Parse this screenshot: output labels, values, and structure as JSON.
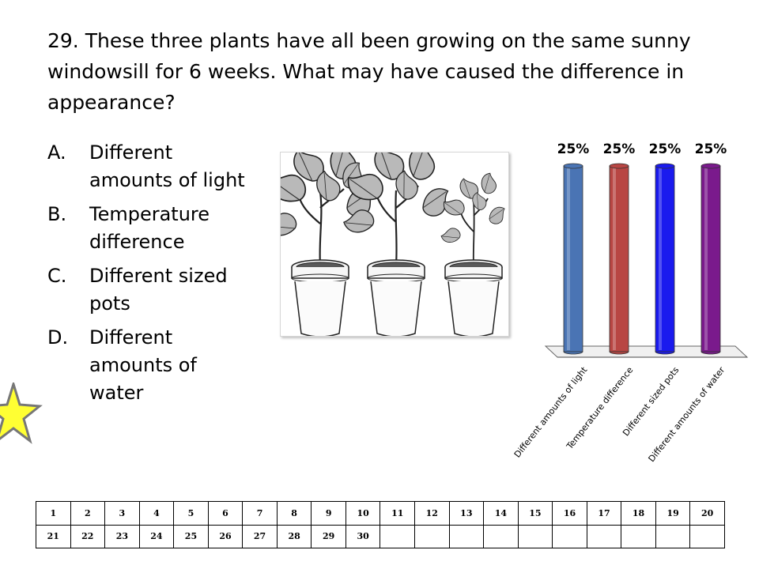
{
  "question": {
    "text": "29.  These three plants have all been growing on the same sunny windowsill for 6 weeks.  What may have caused the difference in appearance?"
  },
  "answers": [
    {
      "letter": "A.",
      "text": "Different amounts of light"
    },
    {
      "letter": "B.",
      "text": "Temperature difference"
    },
    {
      "letter": "C.",
      "text": "Different sized pots"
    },
    {
      "letter": "D.",
      "text": "Different amounts of water"
    }
  ],
  "chart_data": {
    "type": "bar",
    "categories": [
      "Different amounts of light",
      "Temperature difference",
      "Different sized pots",
      "Different amounts of water"
    ],
    "values": [
      25,
      25,
      25,
      25
    ],
    "value_labels": [
      "25%",
      "25%",
      "25%",
      "25%"
    ],
    "colors": [
      "#4a74b4",
      "#b84643",
      "#1a1aee",
      "#7a1a8c"
    ],
    "ylim": [
      0,
      25
    ],
    "title": "",
    "xlabel": "",
    "ylabel": "",
    "grid": false
  },
  "response_grid": {
    "rows": [
      [
        "1",
        "2",
        "3",
        "4",
        "5",
        "6",
        "7",
        "8",
        "9",
        "10",
        "11",
        "12",
        "13",
        "14",
        "15",
        "16",
        "17",
        "18",
        "19",
        "20"
      ],
      [
        "21",
        "22",
        "23",
        "24",
        "25",
        "26",
        "27",
        "28",
        "29",
        "30",
        "",
        "",
        "",
        "",
        "",
        "",
        "",
        "",
        "",
        ""
      ]
    ]
  },
  "icons": {
    "star": "star-icon",
    "plants": "potted-plants-illustration"
  }
}
